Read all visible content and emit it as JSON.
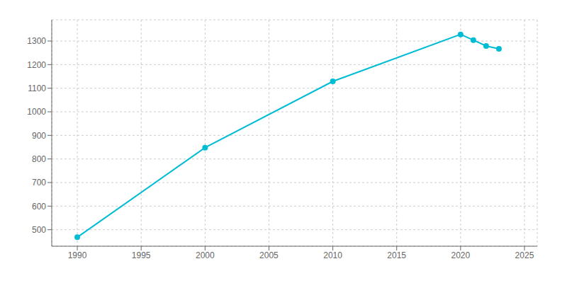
{
  "chart_data": {
    "type": "line",
    "x": [
      1990,
      2000,
      2010,
      2020,
      2021,
      2022,
      2023
    ],
    "values": [
      468,
      848,
      1129,
      1328,
      1304,
      1279,
      1267
    ],
    "color": "#00BCD4",
    "marker": "circle",
    "xlim": [
      1988,
      2026
    ],
    "ylim": [
      430,
      1390
    ],
    "xticks": [
      1990,
      1995,
      2000,
      2005,
      2010,
      2015,
      2020,
      2025
    ],
    "yticks": [
      500,
      600,
      700,
      800,
      900,
      1000,
      1100,
      1200,
      1300
    ],
    "grid": true
  }
}
